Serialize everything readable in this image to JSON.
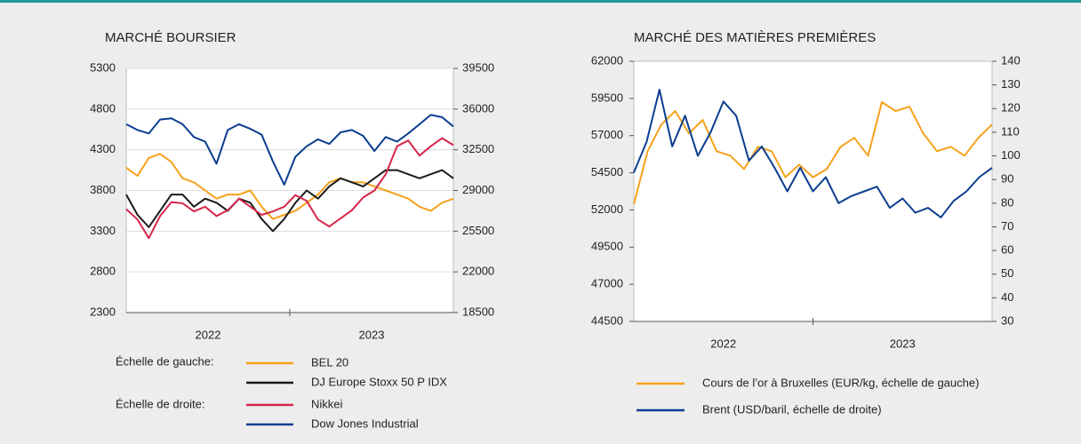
{
  "chart_data": [
    {
      "type": "line",
      "title": "MARCHÉ BOURSIER",
      "x_labels": [
        "2022",
        "2023"
      ],
      "ylim": [
        2300,
        5300
      ],
      "yticks": [
        2300,
        2800,
        3300,
        3800,
        4300,
        4800,
        5300
      ],
      "y2lim": [
        18500,
        39500
      ],
      "y2ticks": [
        18500,
        22000,
        25500,
        29000,
        32500,
        36000,
        39500
      ],
      "grid": true,
      "legend": {
        "left_label": "Échelle de gauche:",
        "right_label": "Échelle de droite:"
      },
      "series": [
        {
          "name": "BEL 20",
          "color": "#f5a11c",
          "values": [
            4080,
            3980,
            4200,
            4250,
            4150,
            3950,
            3900,
            3800,
            3700,
            3750,
            3750,
            3800,
            3600,
            3450,
            3500,
            3550,
            3650,
            3750,
            3900,
            3950,
            3900,
            3900,
            3850,
            3800,
            3750,
            3700,
            3600,
            3550,
            3650,
            3700
          ]
        },
        {
          "name": "DJ Europe Stoxx 50 P IDX",
          "color": "#1a1a1a",
          "values": [
            3750,
            3500,
            3350,
            3550,
            3750,
            3750,
            3600,
            3700,
            3650,
            3550,
            3700,
            3650,
            3450,
            3300,
            3450,
            3650,
            3800,
            3700,
            3850,
            3950,
            3900,
            3850,
            3950,
            4050,
            4050,
            4000,
            3950,
            4000,
            4050,
            3950
          ]
        },
        {
          "name": "Nikkei",
          "color": "#d7264a",
          "axis": "y2",
          "values": [
            27400,
            26500,
            24900,
            26800,
            28000,
            27900,
            27200,
            27600,
            26800,
            27300,
            28300,
            27600,
            26900,
            27200,
            27600,
            28600,
            28100,
            26500,
            25900,
            26600,
            27300,
            28400,
            29000,
            30400,
            32800,
            33300,
            32000,
            32800,
            33500,
            32900
          ]
        },
        {
          "name": "Dow Jones Industrial",
          "color": "#0a3d8f",
          "axis": "y2",
          "values": [
            34700,
            34200,
            33900,
            35100,
            35200,
            34700,
            33600,
            33200,
            31300,
            34200,
            34700,
            34300,
            33800,
            31500,
            29500,
            31900,
            32800,
            33400,
            33000,
            34000,
            34200,
            33700,
            32400,
            33600,
            33200,
            33900,
            34700,
            35500,
            35300,
            34500
          ]
        }
      ]
    },
    {
      "type": "line",
      "title": "MARCHÉ DES MATIÈRES PREMIÈRES",
      "x_labels": [
        "2022",
        "2023"
      ],
      "ylim": [
        44500,
        62000
      ],
      "yticks": [
        44500,
        47000,
        49500,
        52000,
        54500,
        57000,
        59500,
        62000
      ],
      "y2lim": [
        30,
        140
      ],
      "y2ticks": [
        30,
        40,
        50,
        60,
        70,
        80,
        90,
        100,
        110,
        120,
        130,
        140
      ],
      "grid": false,
      "series": [
        {
          "name": "Cours de l’or à Bruxelles (EUR/kg, échelle de gauche)",
          "color": "#f5a11c",
          "values": [
            52400,
            55950,
            57750,
            58650,
            57150,
            58050,
            55950,
            55650,
            54750,
            56250,
            55950,
            54200,
            55050,
            54200,
            54750,
            56250,
            56850,
            55650,
            59250,
            58650,
            58950,
            57150,
            55950,
            56250,
            55650,
            56850,
            57750
          ]
        },
        {
          "name": "Brent (USD/baril, échelle de droite)",
          "color": "#0a3d8f",
          "axis": "y2",
          "values": [
            93,
            106,
            128,
            104,
            117,
            100,
            110,
            123,
            117,
            98,
            104,
            95,
            85,
            95,
            85,
            91,
            80,
            83,
            85,
            87,
            78,
            82,
            76,
            78,
            74,
            81,
            85,
            91,
            95
          ]
        }
      ]
    }
  ]
}
